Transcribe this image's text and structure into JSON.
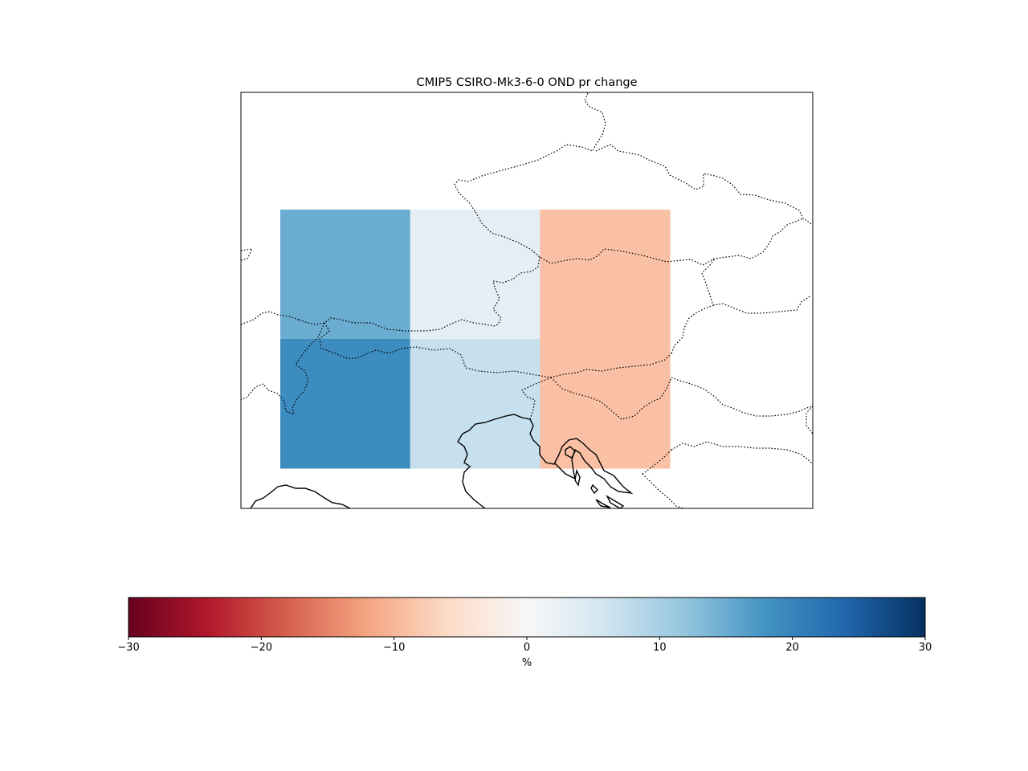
{
  "chart_data": {
    "type": "heatmap",
    "title": "CMIP5 CSIRO-Mk3-6-0 OND pr change",
    "grid": {
      "rows": 2,
      "cols": 3,
      "cells": [
        {
          "row": 0,
          "col": 0,
          "value": 15
        },
        {
          "row": 0,
          "col": 1,
          "value": 3
        },
        {
          "row": 0,
          "col": 2,
          "value": -9
        },
        {
          "row": 1,
          "col": 0,
          "value": 19
        },
        {
          "row": 1,
          "col": 1,
          "value": 7
        },
        {
          "row": 1,
          "col": 2,
          "value": -9
        }
      ]
    },
    "colorbar": {
      "label": "%",
      "min": -30,
      "max": 30,
      "ticks": [
        -30,
        -20,
        -10,
        0,
        10,
        20,
        30
      ],
      "tick_labels": [
        "−30",
        "−20",
        "−10",
        "0",
        "10",
        "20",
        "30"
      ],
      "colormap": "RdBu",
      "colormap_stops": [
        "#67001f",
        "#b2182b",
        "#d6604d",
        "#f4a582",
        "#fddbc7",
        "#f7f7f7",
        "#d1e5f0",
        "#92c5de",
        "#4393c3",
        "#2166ac",
        "#053061"
      ]
    }
  }
}
